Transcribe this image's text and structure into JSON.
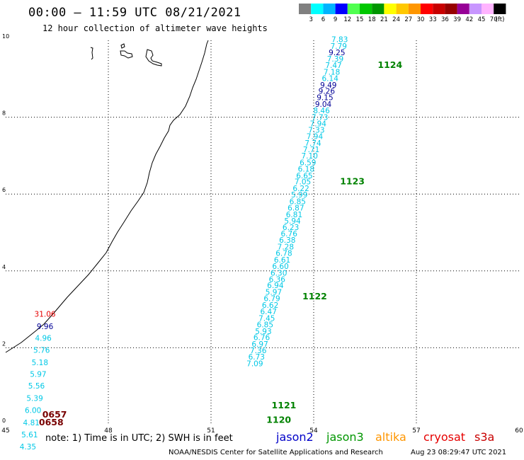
{
  "header": {
    "title": "00:00 – 11:59 UTC 08/21/2021",
    "subtitle": "12 hour collection of altimeter wave heights"
  },
  "legend": {
    "labels": [
      "3",
      "6",
      "9",
      "12",
      "15",
      "18",
      "21",
      "24",
      "27",
      "30",
      "33",
      "36",
      "39",
      "42",
      "45",
      "70"
    ],
    "unit": "(ft)",
    "colors": [
      "#808080",
      "#00ffff",
      "#00b4ff",
      "#0000ff",
      "#50ff50",
      "#00c800",
      "#009600",
      "#ffff00",
      "#ffc800",
      "#ff9600",
      "#ff0000",
      "#c80000",
      "#960000",
      "#960096",
      "#c896ff",
      "#ffb4ff",
      "#000000"
    ]
  },
  "axes": {
    "x_ticks": [
      "45",
      "48",
      "51",
      "54",
      "57",
      "60"
    ],
    "y_ticks": [
      "0",
      "2",
      "4",
      "6",
      "8",
      "10"
    ],
    "x_range": [
      45,
      60
    ],
    "y_range": [
      0,
      10
    ]
  },
  "track_colors": {
    "cyan": "#00c8e6",
    "navy": "#000096",
    "red": "#e60000",
    "time_main": "#008200",
    "time_alt": "#780000"
  },
  "passes": [
    {
      "name": "main-track",
      "readings": [
        {
          "v": "7.83",
          "lon": 54.76,
          "lat": 9.95,
          "c": "cyan"
        },
        {
          "v": "7.79",
          "lon": 54.73,
          "lat": 9.78,
          "c": "cyan"
        },
        {
          "v": "9.25",
          "lon": 54.68,
          "lat": 9.61,
          "c": "navy"
        },
        {
          "v": "7.39",
          "lon": 54.63,
          "lat": 9.45,
          "c": "cyan"
        },
        {
          "v": "7.47",
          "lon": 54.58,
          "lat": 9.28,
          "c": "cyan"
        },
        {
          "v": "7.18",
          "lon": 54.53,
          "lat": 9.11,
          "c": "cyan"
        },
        {
          "v": "6.14",
          "lon": 54.48,
          "lat": 8.94,
          "c": "cyan"
        },
        {
          "v": "9.49",
          "lon": 54.43,
          "lat": 8.77,
          "c": "navy"
        },
        {
          "v": "9.26",
          "lon": 54.38,
          "lat": 8.61,
          "c": "navy"
        },
        {
          "v": "9.15",
          "lon": 54.33,
          "lat": 8.44,
          "c": "navy"
        },
        {
          "v": "9.04",
          "lon": 54.28,
          "lat": 8.27,
          "c": "navy"
        },
        {
          "v": "8.46",
          "lon": 54.23,
          "lat": 8.1,
          "c": "cyan"
        },
        {
          "v": "7.73",
          "lon": 54.18,
          "lat": 7.93,
          "c": "cyan"
        },
        {
          "v": "7.94",
          "lon": 54.13,
          "lat": 7.76,
          "c": "cyan"
        },
        {
          "v": "7.33",
          "lon": 54.08,
          "lat": 7.6,
          "c": "cyan"
        },
        {
          "v": "7.94",
          "lon": 54.03,
          "lat": 7.43,
          "c": "cyan"
        },
        {
          "v": "7.74",
          "lon": 53.98,
          "lat": 7.26,
          "c": "cyan"
        },
        {
          "v": "7.71",
          "lon": 53.93,
          "lat": 7.09,
          "c": "cyan"
        },
        {
          "v": "7.10",
          "lon": 53.88,
          "lat": 6.92,
          "c": "cyan"
        },
        {
          "v": "6.59",
          "lon": 53.83,
          "lat": 6.75,
          "c": "cyan"
        },
        {
          "v": "6.18",
          "lon": 53.78,
          "lat": 6.58,
          "c": "cyan"
        },
        {
          "v": "6.65",
          "lon": 53.73,
          "lat": 6.41,
          "c": "cyan"
        },
        {
          "v": "7.05",
          "lon": 53.68,
          "lat": 6.25,
          "c": "cyan"
        },
        {
          "v": "6.22",
          "lon": 53.63,
          "lat": 6.08,
          "c": "cyan"
        },
        {
          "v": "5.99",
          "lon": 53.58,
          "lat": 5.91,
          "c": "cyan"
        },
        {
          "v": "6.85",
          "lon": 53.53,
          "lat": 5.74,
          "c": "cyan"
        },
        {
          "v": "6.87",
          "lon": 53.48,
          "lat": 5.57,
          "c": "cyan"
        },
        {
          "v": "6.81",
          "lon": 53.43,
          "lat": 5.4,
          "c": "cyan"
        },
        {
          "v": "5.94",
          "lon": 53.38,
          "lat": 5.23,
          "c": "cyan"
        },
        {
          "v": "6.23",
          "lon": 53.33,
          "lat": 5.06,
          "c": "cyan"
        },
        {
          "v": "6.76",
          "lon": 53.28,
          "lat": 4.9,
          "c": "cyan"
        },
        {
          "v": "6.38",
          "lon": 53.23,
          "lat": 4.73,
          "c": "cyan"
        },
        {
          "v": "7.28",
          "lon": 53.18,
          "lat": 4.56,
          "c": "cyan"
        },
        {
          "v": "6.78",
          "lon": 53.13,
          "lat": 4.39,
          "c": "cyan"
        },
        {
          "v": "6.61",
          "lon": 53.08,
          "lat": 4.22,
          "c": "cyan"
        },
        {
          "v": "6.60",
          "lon": 53.03,
          "lat": 4.05,
          "c": "cyan"
        },
        {
          "v": "6.30",
          "lon": 52.98,
          "lat": 3.88,
          "c": "cyan"
        },
        {
          "v": "6.36",
          "lon": 52.93,
          "lat": 3.71,
          "c": "cyan"
        },
        {
          "v": "6.94",
          "lon": 52.88,
          "lat": 3.55,
          "c": "cyan"
        },
        {
          "v": "5.97",
          "lon": 52.83,
          "lat": 3.38,
          "c": "cyan"
        },
        {
          "v": "6.79",
          "lon": 52.78,
          "lat": 3.21,
          "c": "cyan"
        },
        {
          "v": "6.62",
          "lon": 52.73,
          "lat": 3.04,
          "c": "cyan"
        },
        {
          "v": "6.47",
          "lon": 52.68,
          "lat": 2.87,
          "c": "cyan"
        },
        {
          "v": "7.45",
          "lon": 52.63,
          "lat": 2.7,
          "c": "cyan"
        },
        {
          "v": "6.85",
          "lon": 52.58,
          "lat": 2.53,
          "c": "cyan"
        },
        {
          "v": "5.93",
          "lon": 52.53,
          "lat": 2.36,
          "c": "cyan"
        },
        {
          "v": "6.76",
          "lon": 52.48,
          "lat": 2.2,
          "c": "cyan"
        },
        {
          "v": "6.97",
          "lon": 52.43,
          "lat": 2.03,
          "c": "cyan"
        },
        {
          "v": "7.36",
          "lon": 52.38,
          "lat": 1.86,
          "c": "cyan"
        },
        {
          "v": "6.73",
          "lon": 52.33,
          "lat": 1.69,
          "c": "cyan"
        },
        {
          "v": "7.09",
          "lon": 52.28,
          "lat": 1.52,
          "c": "cyan"
        }
      ],
      "times": [
        {
          "t": "1124",
          "lon": 56.23,
          "lat": 9.28
        },
        {
          "t": "1123",
          "lon": 55.13,
          "lat": 6.25
        },
        {
          "t": "1122",
          "lon": 54.03,
          "lat": 3.26
        },
        {
          "t": "1121",
          "lon": 53.13,
          "lat": 0.42
        },
        {
          "t": "1120",
          "lon": 52.98,
          "lat": 0.05
        }
      ]
    },
    {
      "name": "coastal-track",
      "readings": [
        {
          "v": "31.06",
          "lon": 46.15,
          "lat": 2.81,
          "c": "red"
        },
        {
          "v": "9.96",
          "lon": 46.15,
          "lat": 2.49,
          "c": "navy"
        },
        {
          "v": "4.96",
          "lon": 46.1,
          "lat": 2.18,
          "c": "cyan"
        },
        {
          "v": "5.76",
          "lon": 46.05,
          "lat": 1.87,
          "c": "cyan"
        },
        {
          "v": "5.18",
          "lon": 46.0,
          "lat": 1.55,
          "c": "cyan"
        },
        {
          "v": "5.97",
          "lon": 45.95,
          "lat": 1.24,
          "c": "cyan"
        },
        {
          "v": "5.56",
          "lon": 45.9,
          "lat": 0.94,
          "c": "cyan"
        },
        {
          "v": "5.39",
          "lon": 45.85,
          "lat": 0.62,
          "c": "cyan"
        },
        {
          "v": "6.00",
          "lon": 45.8,
          "lat": 0.3,
          "c": "cyan"
        },
        {
          "v": "4.81",
          "lon": 45.75,
          "lat": -0.02,
          "c": "cyan"
        },
        {
          "v": "5.61",
          "lon": 45.7,
          "lat": -0.33,
          "c": "cyan"
        },
        {
          "v": "4.35",
          "lon": 45.65,
          "lat": -0.64,
          "c": "cyan"
        }
      ],
      "times": [
        {
          "t": "0657",
          "lon": 46.43,
          "lat": 0.18
        },
        {
          "t": "0658",
          "lon": 46.33,
          "lat": -0.02
        }
      ]
    }
  ],
  "footer": {
    "note": "note:  1) Time is in UTC;  2) SWH is in feet",
    "satellites": [
      {
        "name": "jason2",
        "color": "#0000c8"
      },
      {
        "name": "jason3",
        "color": "#009600"
      },
      {
        "name": "altika",
        "color": "#ff9600"
      },
      {
        "name": "cryosat",
        "color": "#e60000"
      },
      {
        "name": "s3a",
        "color": "#c80000"
      }
    ],
    "credit": "NOAA/NESDIS Center for Satellite Applications and Research",
    "timestamp": "Aug 23 08:29:47 UTC 2021"
  }
}
